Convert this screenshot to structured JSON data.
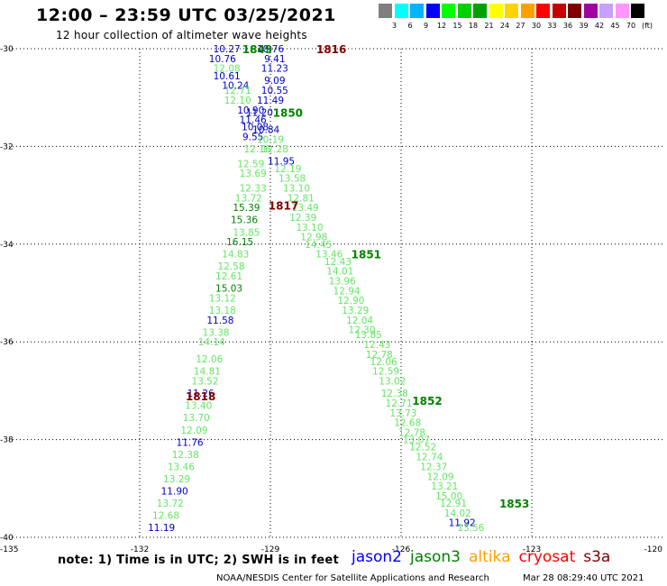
{
  "header": {
    "title": "12:00 – 23:59 UTC 03/25/2021",
    "subtitle": "12 hour collection of altimeter wave heights"
  },
  "scale": {
    "unit": "(ft)",
    "colors": [
      "#7f7f7f",
      "#00ffff",
      "#00b4ff",
      "#0000ff",
      "#00ff00",
      "#00d200",
      "#00a000",
      "#ffff00",
      "#ffd200",
      "#ffa000",
      "#ff0000",
      "#c80000",
      "#800000",
      "#a000a0",
      "#c8a0ff",
      "#ff96ff",
      "#000000"
    ],
    "ticks": [
      "3",
      "6",
      "9",
      "12",
      "15",
      "18",
      "21",
      "24",
      "27",
      "30",
      "33",
      "36",
      "39",
      "42",
      "45",
      "70"
    ]
  },
  "footer": {
    "note": "note: 1) Time is in UTC; 2) SWH is in feet",
    "credit": "NOAA/NESDIS Center for Satellite Applications and Research",
    "timestamp": "Mar 28 08:29:40 UTC 2021"
  },
  "satellites": [
    {
      "name": "jason2",
      "color": "#0000ff"
    },
    {
      "name": "jason3",
      "color": "#008000"
    },
    {
      "name": "altika",
      "color": "#ffa000"
    },
    {
      "name": "cryosat",
      "color": "#ff0000"
    },
    {
      "name": "s3a",
      "color": "#800000"
    }
  ],
  "chart_data": {
    "type": "scatter",
    "xlabel": "",
    "ylabel": "",
    "xlim": [
      -135,
      -120
    ],
    "ylim": [
      -40,
      -30
    ],
    "xticks": [
      "-135",
      "-132",
      "-129",
      "-126",
      "-123",
      "-120"
    ],
    "yticks": [
      "-30",
      "-32",
      "-34",
      "-36",
      "-38",
      "-40"
    ],
    "grid": true,
    "colors": {
      "blue": "#0000c8",
      "green": "#64e664",
      "darkgreen": "#008200",
      "maroon": "#800000"
    },
    "pass_labels": [
      {
        "text": "1849",
        "lon": -129.3,
        "lat": -30.0,
        "color": "darkgreen"
      },
      {
        "text": "1816",
        "lon": -127.6,
        "lat": -30.0,
        "color": "maroon"
      },
      {
        "text": "1850",
        "lon": -128.6,
        "lat": -31.3,
        "color": "darkgreen"
      },
      {
        "text": "1817",
        "lon": -128.7,
        "lat": -33.2,
        "color": "maroon"
      },
      {
        "text": "1851",
        "lon": -126.8,
        "lat": -34.2,
        "color": "darkgreen"
      },
      {
        "text": "1818",
        "lon": -130.6,
        "lat": -37.1,
        "color": "maroon"
      },
      {
        "text": "1852",
        "lon": -125.4,
        "lat": -37.2,
        "color": "darkgreen"
      },
      {
        "text": "1853",
        "lon": -123.4,
        "lat": -39.3,
        "color": "darkgreen"
      }
    ],
    "points": [
      {
        "v": "10.27",
        "lon": -130.0,
        "lat": -30.0,
        "c": "blue"
      },
      {
        "v": "10.76",
        "lon": -129.0,
        "lat": -30.0,
        "c": "blue"
      },
      {
        "v": "10.76",
        "lon": -130.1,
        "lat": -30.2,
        "c": "blue"
      },
      {
        "v": "9.41",
        "lon": -128.9,
        "lat": -30.2,
        "c": "blue"
      },
      {
        "v": "12.08",
        "lon": -130.0,
        "lat": -30.4,
        "c": "green"
      },
      {
        "v": "11.23",
        "lon": -128.9,
        "lat": -30.4,
        "c": "blue"
      },
      {
        "v": "10.61",
        "lon": -130.0,
        "lat": -30.55,
        "c": "blue"
      },
      {
        "v": "9.09",
        "lon": -128.9,
        "lat": -30.65,
        "c": "blue"
      },
      {
        "v": "10.24",
        "lon": -129.8,
        "lat": -30.75,
        "c": "blue"
      },
      {
        "v": "10.55",
        "lon": -128.9,
        "lat": -30.85,
        "c": "blue"
      },
      {
        "v": "12.71",
        "lon": -129.75,
        "lat": -30.85,
        "c": "green"
      },
      {
        "v": "12.10",
        "lon": -129.75,
        "lat": -31.05,
        "c": "green"
      },
      {
        "v": "11.49",
        "lon": -129.0,
        "lat": -31.05,
        "c": "blue"
      },
      {
        "v": "10.90",
        "lon": -129.45,
        "lat": -31.25,
        "c": "blue"
      },
      {
        "v": "11.20",
        "lon": -129.25,
        "lat": -31.3,
        "c": "blue"
      },
      {
        "v": "11.46",
        "lon": -129.4,
        "lat": -31.45,
        "c": "blue"
      },
      {
        "v": "10.08",
        "lon": -129.35,
        "lat": -31.6,
        "c": "blue"
      },
      {
        "v": "10.84",
        "lon": -129.1,
        "lat": -31.65,
        "c": "blue"
      },
      {
        "v": "9.55",
        "lon": -129.4,
        "lat": -31.8,
        "c": "blue"
      },
      {
        "v": "10.19",
        "lon": -129.0,
        "lat": -31.85,
        "c": "green"
      },
      {
        "v": "12.16",
        "lon": -129.3,
        "lat": -32.05,
        "c": "green"
      },
      {
        "v": "12.28",
        "lon": -128.9,
        "lat": -32.05,
        "c": "green"
      },
      {
        "v": "11.95",
        "lon": -128.75,
        "lat": -32.3,
        "c": "blue"
      },
      {
        "v": "12.59",
        "lon": -129.45,
        "lat": -32.35,
        "c": "green"
      },
      {
        "v": "12.19",
        "lon": -128.6,
        "lat": -32.45,
        "c": "green"
      },
      {
        "v": "13.69",
        "lon": -129.4,
        "lat": -32.55,
        "c": "green"
      },
      {
        "v": "13.58",
        "lon": -128.5,
        "lat": -32.65,
        "c": "green"
      },
      {
        "v": "12.33",
        "lon": -129.4,
        "lat": -32.85,
        "c": "green"
      },
      {
        "v": "13.10",
        "lon": -128.4,
        "lat": -32.85,
        "c": "green"
      },
      {
        "v": "13.72",
        "lon": -129.5,
        "lat": -33.05,
        "c": "green"
      },
      {
        "v": "12.81",
        "lon": -128.3,
        "lat": -33.05,
        "c": "green"
      },
      {
        "v": "15.39",
        "lon": -129.55,
        "lat": -33.25,
        "c": "darkgreen"
      },
      {
        "v": "13.49",
        "lon": -128.2,
        "lat": -33.25,
        "c": "green"
      },
      {
        "v": "12.39",
        "lon": -128.25,
        "lat": -33.45,
        "c": "green"
      },
      {
        "v": "15.36",
        "lon": -129.6,
        "lat": -33.5,
        "c": "darkgreen"
      },
      {
        "v": "13.10",
        "lon": -128.1,
        "lat": -33.65,
        "c": "green"
      },
      {
        "v": "13.85",
        "lon": -129.55,
        "lat": -33.75,
        "c": "green"
      },
      {
        "v": "12.98",
        "lon": -128.0,
        "lat": -33.85,
        "c": "green"
      },
      {
        "v": "16.15",
        "lon": -129.7,
        "lat": -33.95,
        "c": "darkgreen"
      },
      {
        "v": "14.45",
        "lon": -127.9,
        "lat": -34.0,
        "c": "green"
      },
      {
        "v": "14.83",
        "lon": -129.8,
        "lat": -34.2,
        "c": "green"
      },
      {
        "v": "13.46",
        "lon": -127.65,
        "lat": -34.2,
        "c": "green"
      },
      {
        "v": "12.43",
        "lon": -127.45,
        "lat": -34.35,
        "c": "green"
      },
      {
        "v": "12.58",
        "lon": -129.9,
        "lat": -34.45,
        "c": "green"
      },
      {
        "v": "14.01",
        "lon": -127.4,
        "lat": -34.55,
        "c": "green"
      },
      {
        "v": "12.61",
        "lon": -129.95,
        "lat": -34.65,
        "c": "green"
      },
      {
        "v": "13.96",
        "lon": -127.35,
        "lat": -34.75,
        "c": "green"
      },
      {
        "v": "15.03",
        "lon": -129.95,
        "lat": -34.9,
        "c": "darkgreen"
      },
      {
        "v": "12.94",
        "lon": -127.25,
        "lat": -34.95,
        "c": "green"
      },
      {
        "v": "13.12",
        "lon": -130.1,
        "lat": -35.1,
        "c": "green"
      },
      {
        "v": "12.90",
        "lon": -127.15,
        "lat": -35.15,
        "c": "green"
      },
      {
        "v": "13.18",
        "lon": -130.1,
        "lat": -35.35,
        "c": "green"
      },
      {
        "v": "13.29",
        "lon": -127.05,
        "lat": -35.35,
        "c": "green"
      },
      {
        "v": "12.04",
        "lon": -126.95,
        "lat": -35.55,
        "c": "green"
      },
      {
        "v": "11.58",
        "lon": -130.15,
        "lat": -35.55,
        "c": "blue"
      },
      {
        "v": "12.30",
        "lon": -126.9,
        "lat": -35.75,
        "c": "green"
      },
      {
        "v": "13.38",
        "lon": -130.25,
        "lat": -35.8,
        "c": "green"
      },
      {
        "v": "13.85",
        "lon": -126.75,
        "lat": -35.85,
        "c": "green"
      },
      {
        "v": "14.14",
        "lon": -130.35,
        "lat": -36.0,
        "c": "green"
      },
      {
        "v": "12.43",
        "lon": -126.55,
        "lat": -36.05,
        "c": "green"
      },
      {
        "v": "12.78",
        "lon": -126.5,
        "lat": -36.25,
        "c": "green"
      },
      {
        "v": "12.06",
        "lon": -130.4,
        "lat": -36.35,
        "c": "green"
      },
      {
        "v": "12.06",
        "lon": -126.4,
        "lat": -36.4,
        "c": "green"
      },
      {
        "v": "12.59",
        "lon": -126.35,
        "lat": -36.6,
        "c": "green"
      },
      {
        "v": "14.81",
        "lon": -130.45,
        "lat": -36.6,
        "c": "green"
      },
      {
        "v": "13.02",
        "lon": -126.2,
        "lat": -36.8,
        "c": "green"
      },
      {
        "v": "13.52",
        "lon": -130.5,
        "lat": -36.8,
        "c": "green"
      },
      {
        "v": "12.38",
        "lon": -126.15,
        "lat": -37.05,
        "c": "green"
      },
      {
        "v": "11.26",
        "lon": -130.6,
        "lat": -37.05,
        "c": "blue"
      },
      {
        "v": "12.71",
        "lon": -126.05,
        "lat": -37.25,
        "c": "green"
      },
      {
        "v": "13.40",
        "lon": -130.65,
        "lat": -37.3,
        "c": "green"
      },
      {
        "v": "13.73",
        "lon": -125.95,
        "lat": -37.45,
        "c": "green"
      },
      {
        "v": "13.70",
        "lon": -130.7,
        "lat": -37.55,
        "c": "green"
      },
      {
        "v": "12.68",
        "lon": -125.85,
        "lat": -37.65,
        "c": "green"
      },
      {
        "v": "12.09",
        "lon": -130.75,
        "lat": -37.8,
        "c": "green"
      },
      {
        "v": "12.78",
        "lon": -125.75,
        "lat": -37.85,
        "c": "green"
      },
      {
        "v": "13.07",
        "lon": -125.65,
        "lat": -38.0,
        "c": "green"
      },
      {
        "v": "11.76",
        "lon": -130.85,
        "lat": -38.05,
        "c": "blue"
      },
      {
        "v": "12.52",
        "lon": -125.5,
        "lat": -38.15,
        "c": "green"
      },
      {
        "v": "12.38",
        "lon": -130.95,
        "lat": -38.3,
        "c": "green"
      },
      {
        "v": "12.74",
        "lon": -125.35,
        "lat": -38.35,
        "c": "green"
      },
      {
        "v": "13.46",
        "lon": -131.05,
        "lat": -38.55,
        "c": "green"
      },
      {
        "v": "12.37",
        "lon": -125.25,
        "lat": -38.55,
        "c": "green"
      },
      {
        "v": "12.09",
        "lon": -125.1,
        "lat": -38.75,
        "c": "green"
      },
      {
        "v": "13.29",
        "lon": -131.15,
        "lat": -38.8,
        "c": "green"
      },
      {
        "v": "13.21",
        "lon": -125.0,
        "lat": -38.95,
        "c": "green"
      },
      {
        "v": "11.90",
        "lon": -131.2,
        "lat": -39.05,
        "c": "blue"
      },
      {
        "v": "15.00",
        "lon": -124.9,
        "lat": -39.15,
        "c": "green"
      },
      {
        "v": "13.72",
        "lon": -131.3,
        "lat": -39.3,
        "c": "green"
      },
      {
        "v": "12.91",
        "lon": -124.8,
        "lat": -39.3,
        "c": "green"
      },
      {
        "v": "14.02",
        "lon": -124.7,
        "lat": -39.5,
        "c": "green"
      },
      {
        "v": "12.68",
        "lon": -131.4,
        "lat": -39.55,
        "c": "green"
      },
      {
        "v": "11.92",
        "lon": -124.6,
        "lat": -39.7,
        "c": "blue"
      },
      {
        "v": "11.19",
        "lon": -131.5,
        "lat": -39.8,
        "c": "blue"
      },
      {
        "v": "13.56",
        "lon": -124.4,
        "lat": -39.8,
        "c": "green"
      }
    ]
  }
}
